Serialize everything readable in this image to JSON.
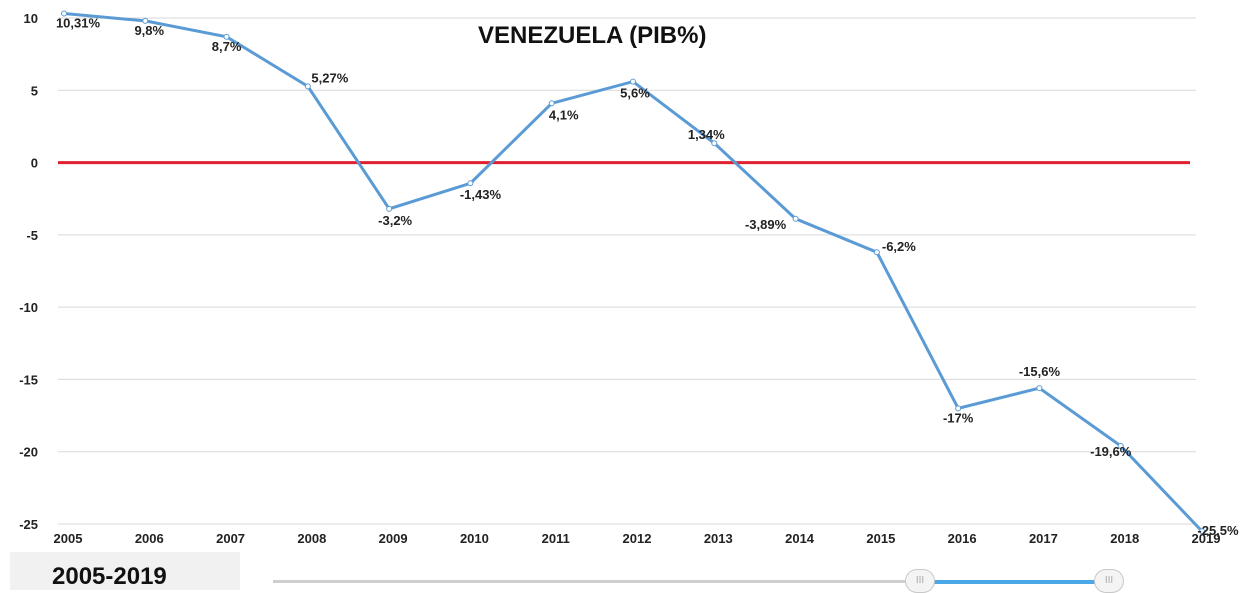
{
  "chart_data": {
    "type": "line",
    "title": "VENEZUELA (PIB%)",
    "xlabel": "",
    "ylabel": "",
    "ylim": [
      -25,
      10
    ],
    "yticks": [
      "10",
      "5",
      "0",
      "-5",
      "-10",
      "-15",
      "-20",
      "-25"
    ],
    "categories": [
      "2005",
      "2006",
      "2007",
      "2008",
      "2009",
      "2010",
      "2011",
      "2012",
      "2013",
      "2014",
      "2015",
      "2016",
      "2017",
      "2018",
      "2019"
    ],
    "series": [
      {
        "values": [
          10.31,
          9.8,
          8.7,
          5.27,
          -3.2,
          -1.43,
          4.1,
          5.6,
          1.34,
          -3.89,
          -6.2,
          -17,
          -15.6,
          -19.6,
          -25.5
        ],
        "labels": [
          "10,31%",
          "9,8%",
          "8,7%",
          "5,27%",
          "-3,2%",
          "-1,43%",
          "4,1%",
          "5,6%",
          "1,34%",
          "-3,89%",
          "-6,2%",
          "-17%",
          "-15,6%",
          "-19,6%",
          "-25,5%"
        ]
      }
    ],
    "reference_line": {
      "value": 0,
      "color": "#e0202e"
    },
    "line_color": "#5b9bd5",
    "grid": true,
    "legend": "none"
  },
  "range_selector": {
    "label": "2005-2019",
    "handle_left_glyph": "III",
    "handle_right_glyph": "III"
  }
}
